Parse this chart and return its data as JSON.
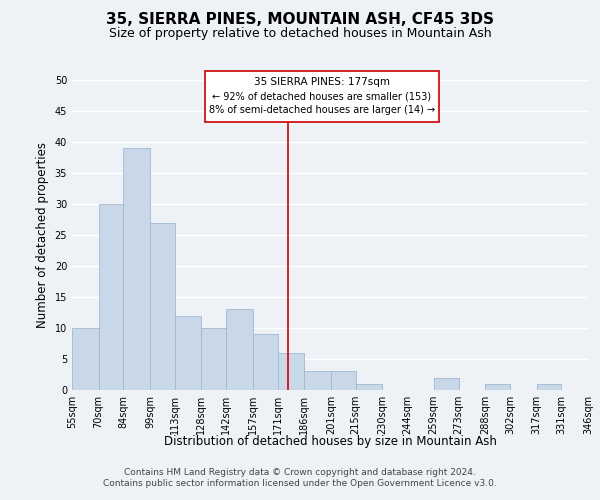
{
  "title": "35, SIERRA PINES, MOUNTAIN ASH, CF45 3DS",
  "subtitle": "Size of property relative to detached houses in Mountain Ash",
  "xlabel": "Distribution of detached houses by size in Mountain Ash",
  "ylabel": "Number of detached properties",
  "bin_edges": [
    55,
    70,
    84,
    99,
    113,
    128,
    142,
    157,
    171,
    186,
    201,
    215,
    230,
    244,
    259,
    273,
    288,
    302,
    317,
    331,
    346
  ],
  "bin_labels": [
    "55sqm",
    "70sqm",
    "84sqm",
    "99sqm",
    "113sqm",
    "128sqm",
    "142sqm",
    "157sqm",
    "171sqm",
    "186sqm",
    "201sqm",
    "215sqm",
    "230sqm",
    "244sqm",
    "259sqm",
    "273sqm",
    "288sqm",
    "302sqm",
    "317sqm",
    "331sqm",
    "346sqm"
  ],
  "counts": [
    10,
    30,
    39,
    27,
    12,
    10,
    13,
    9,
    6,
    3,
    3,
    1,
    0,
    0,
    2,
    0,
    1,
    0,
    1,
    0
  ],
  "bar_color": "#c8d8e8",
  "bar_edge_color": "#a0b8d0",
  "reference_line_x": 177,
  "reference_line_color": "#cc0000",
  "annotation_text_line1": "35 SIERRA PINES: 177sqm",
  "annotation_text_line2": "← 92% of detached houses are smaller (153)",
  "annotation_text_line3": "8% of semi-detached houses are larger (14) →",
  "annotation_box_color": "#ffffff",
  "annotation_box_edge_color": "#cc0000",
  "ylim": [
    0,
    50
  ],
  "yticks": [
    0,
    5,
    10,
    15,
    20,
    25,
    30,
    35,
    40,
    45,
    50
  ],
  "footer_line1": "Contains HM Land Registry data © Crown copyright and database right 2024.",
  "footer_line2": "Contains public sector information licensed under the Open Government Licence v3.0.",
  "background_color": "#eef2f7",
  "grid_color": "#ffffff",
  "title_fontsize": 11,
  "subtitle_fontsize": 9,
  "axis_label_fontsize": 8.5,
  "tick_fontsize": 7,
  "footer_fontsize": 6.5
}
